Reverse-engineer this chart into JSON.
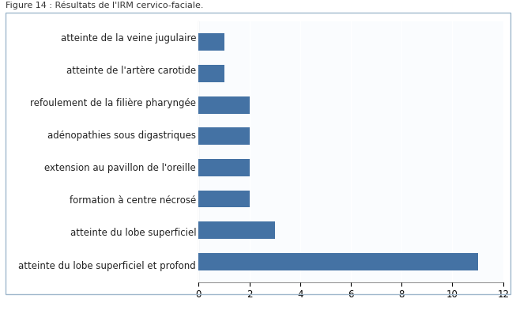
{
  "categories": [
    "atteinte du lobe superficiel et profond",
    "atteinte du lobe superficiel",
    "formation à centre nécrosé",
    "extension au pavillon de l'oreille",
    "adénopathies sous digastriques",
    "refoulement de la filière pharryngée",
    "atteinte de l'artère carotide",
    "atteinte de la veine jugulaire"
  ],
  "values": [
    11,
    3,
    2,
    2,
    2,
    2,
    1,
    1
  ],
  "bar_color": "#4472A4",
  "plot_bg_color": "#FAFCFE",
  "outer_bg_color": "#C9D9E8",
  "figure_bg_color": "#FFFFFF",
  "xlim": [
    0,
    12
  ],
  "xticks": [
    0,
    2,
    4,
    6,
    8,
    10,
    12
  ],
  "title": "Figure 14 : Résultats de l'IRM cervico-faciale.",
  "title_fontsize": 8,
  "label_fontsize": 8.5,
  "tick_fontsize": 8.5,
  "grid_color": "#FFFFFF",
  "border_color": "#A0B8CC"
}
